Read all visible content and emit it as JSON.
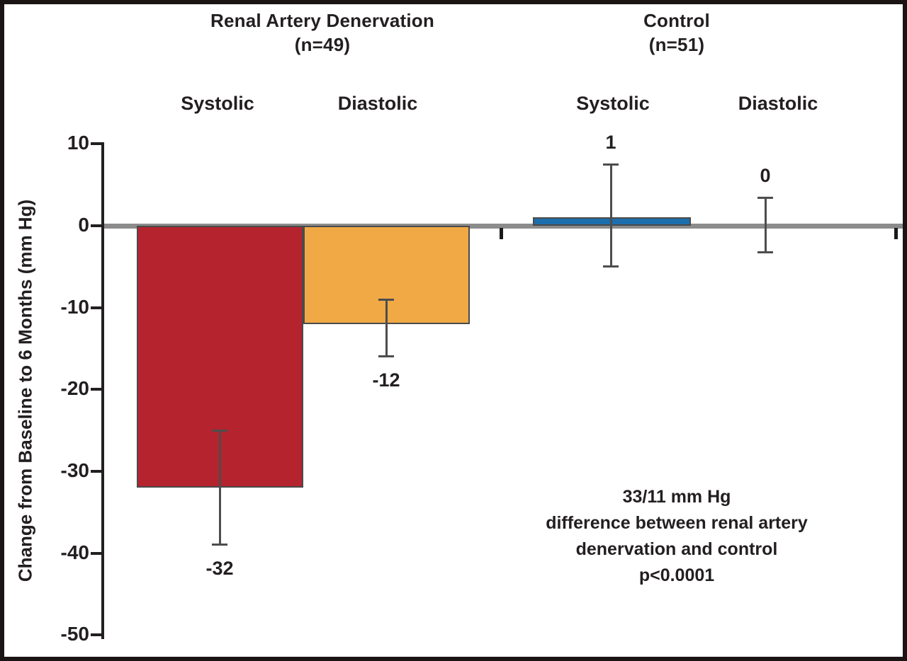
{
  "figure": {
    "kind": "static-chart-figure"
  },
  "colors": {
    "red_bar": "#b5232e",
    "orange_bar": "#f0a945",
    "blue_bar": "#1d6eac",
    "zero_line": "#8c8c8c",
    "axis": "#231f20",
    "error_bar": "#4d4d4d",
    "text": "#231f20",
    "frame": "#1a1414"
  },
  "chart_data": {
    "type": "bar",
    "title": "",
    "xlabel": "",
    "ylabel": "Change from Baseline to 6 Months (mm Hg)",
    "ylim": [
      -50,
      10
    ],
    "yticks": [
      10,
      0,
      -10,
      -20,
      -30,
      -40,
      -50
    ],
    "grid": false,
    "legend": false,
    "groups": [
      {
        "name": "Renal Artery Denervation",
        "n_label": "(n=49)",
        "n": 49,
        "bars": [
          {
            "measure": "Systolic",
            "value": -32,
            "label": "-32",
            "error_high": -25,
            "error_low": -39,
            "color": "#b5232e"
          },
          {
            "measure": "Diastolic",
            "value": -12,
            "label": "-12",
            "error_high": -9,
            "error_low": -16,
            "color": "#f0a945"
          }
        ]
      },
      {
        "name": "Control",
        "n_label": "(n=51)",
        "n": 51,
        "bars": [
          {
            "measure": "Systolic",
            "value": 1,
            "label": "1",
            "error_high": 7.5,
            "error_low": -5,
            "color": "#1d6eac"
          },
          {
            "measure": "Diastolic",
            "value": 0,
            "label": "0",
            "error_high": 3.5,
            "error_low": -3.3,
            "color": null
          }
        ]
      }
    ],
    "annotation": {
      "lines": [
        "33/11 mm Hg",
        "difference between renal artery",
        "denervation and control",
        "p<0.0001"
      ]
    }
  }
}
